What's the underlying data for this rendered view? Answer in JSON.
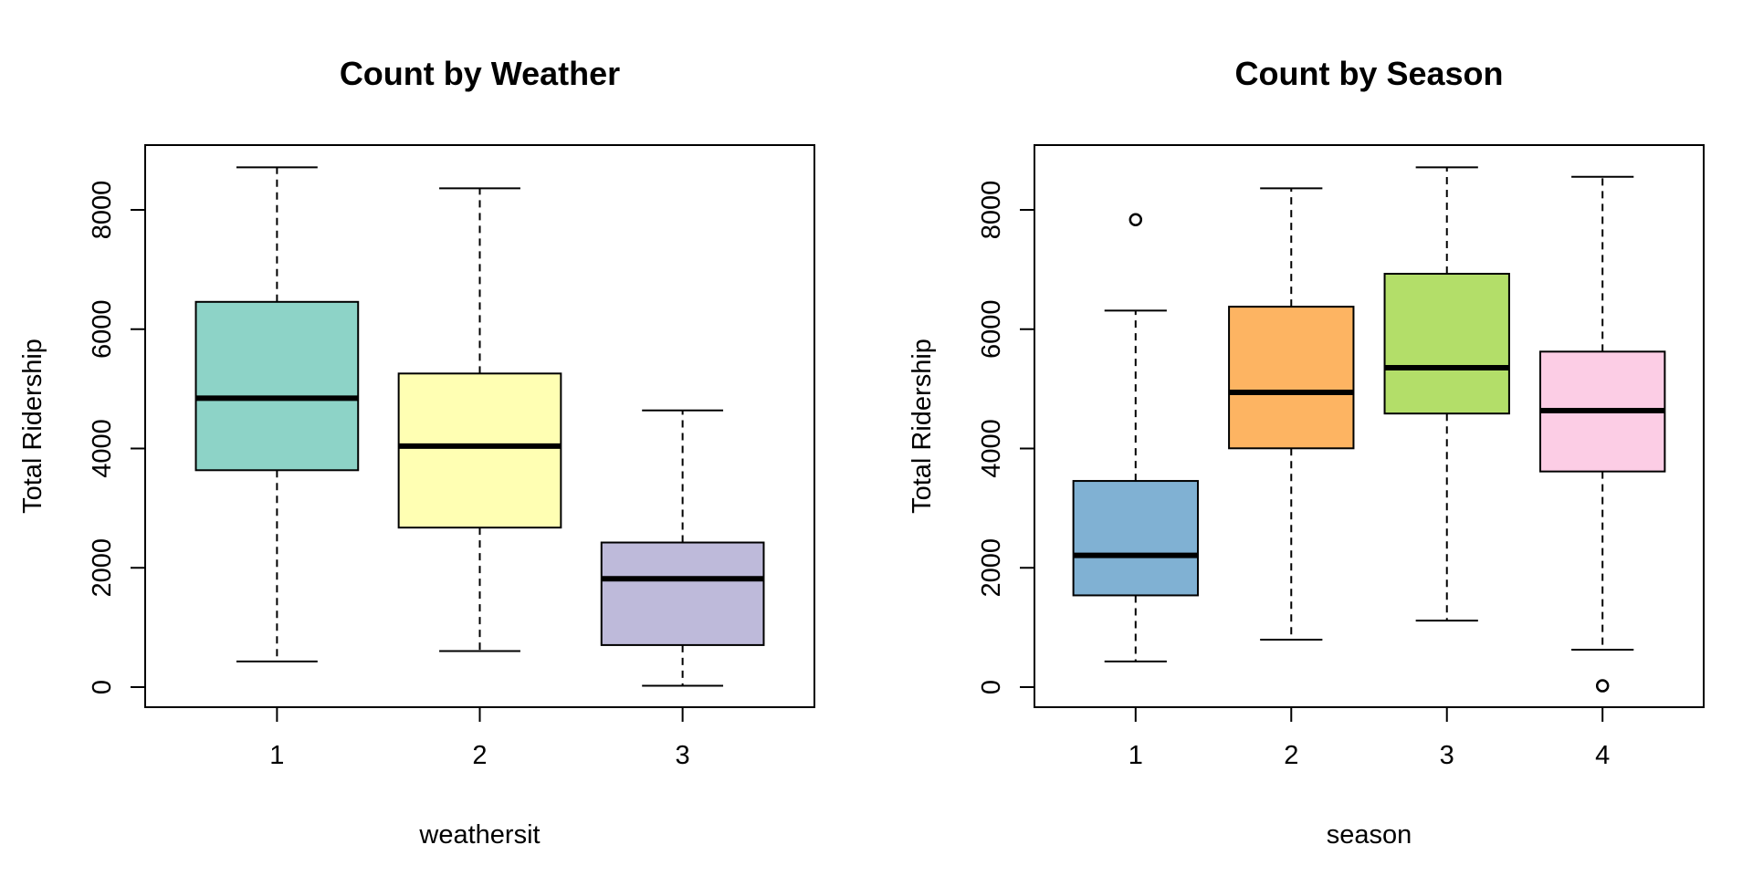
{
  "chart_data": [
    {
      "type": "boxplot",
      "title": "Count by Weather",
      "xlabel": "weathersit",
      "ylabel": "Total Ridership",
      "ylim": [
        0,
        9000
      ],
      "yticks": [
        0,
        2000,
        4000,
        6000,
        8000
      ],
      "yticklabels": [
        "0",
        "2000",
        "4000",
        "6000",
        "8000"
      ],
      "categories": [
        "1",
        "2",
        "3"
      ],
      "boxes": [
        {
          "category": "1",
          "min": 431,
          "q1": 3636,
          "median": 4844,
          "q3": 6458,
          "max": 8714,
          "color": "#8DD3C7",
          "outliers": []
        },
        {
          "category": "2",
          "min": 605,
          "q1": 2674,
          "median": 4041,
          "q3": 5257,
          "max": 8362,
          "color": "#FFFFB3",
          "outliers": []
        },
        {
          "category": "3",
          "min": 22,
          "q1": 705,
          "median": 1817,
          "q3": 2424,
          "max": 4639,
          "color": "#BEBADA",
          "outliers": []
        }
      ]
    },
    {
      "type": "boxplot",
      "title": "Count by Season",
      "xlabel": "season",
      "ylabel": "Total Ridership",
      "ylim": [
        0,
        9000
      ],
      "yticks": [
        0,
        2000,
        4000,
        6000,
        8000
      ],
      "yticklabels": [
        "0",
        "2000",
        "4000",
        "6000",
        "8000"
      ],
      "categories": [
        "1",
        "2",
        "3",
        "4"
      ],
      "boxes": [
        {
          "category": "1",
          "min": 431,
          "q1": 1538,
          "median": 2209,
          "q3": 3456,
          "max": 6312,
          "color": "#80B1D3",
          "outliers": [
            7836
          ]
        },
        {
          "category": "2",
          "min": 795,
          "q1": 4003,
          "median": 4941,
          "q3": 6377,
          "max": 8362,
          "color": "#FDB462",
          "outliers": []
        },
        {
          "category": "3",
          "min": 1115,
          "q1": 4586,
          "median": 5353,
          "q3": 6929,
          "max": 8714,
          "color": "#B3DE69",
          "outliers": []
        },
        {
          "category": "4",
          "min": 627,
          "q1": 3615,
          "median": 4634,
          "q3": 5624,
          "max": 8555,
          "color": "#FCCDE5",
          "outliers": [
            22
          ]
        }
      ]
    }
  ]
}
